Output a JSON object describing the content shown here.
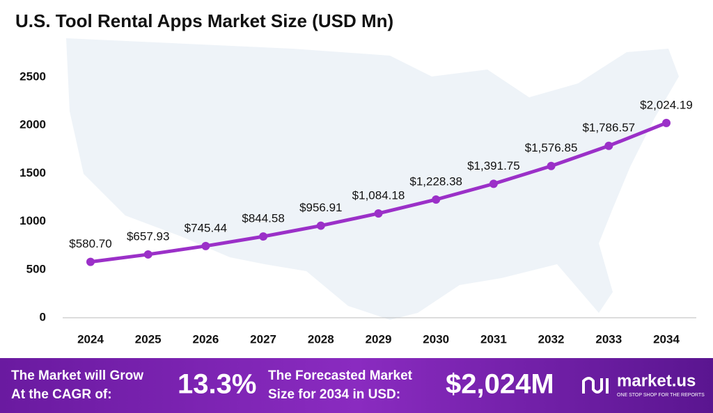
{
  "chart_data": {
    "type": "line",
    "title": "U.S. Tool Rental Apps Market Size (USD Mn)",
    "categories": [
      "2024",
      "2025",
      "2026",
      "2027",
      "2028",
      "2029",
      "2030",
      "2031",
      "2032",
      "2033",
      "2034"
    ],
    "values": [
      580.7,
      657.93,
      745.44,
      844.58,
      956.91,
      1084.18,
      1228.38,
      1391.75,
      1576.85,
      1786.57,
      2024.19
    ],
    "value_labels": [
      "$580.70",
      "$657.93",
      "$745.44",
      "$844.58",
      "$956.91",
      "$1,084.18",
      "$1,228.38",
      "$1,391.75",
      "$1,576.85",
      "$1,786.57",
      "$2,024.19"
    ],
    "color": "#9b30c8",
    "ylim": [
      0,
      2500
    ],
    "yticks": [
      0,
      500,
      1000,
      1500,
      2000,
      2500
    ],
    "grid": false
  },
  "footer": {
    "cagr_text": [
      "The Market will Grow",
      "At the CAGR of:"
    ],
    "cagr": "13.3%",
    "forecast_text": [
      "The Forecasted Market",
      "Size for 2034 in USD:"
    ],
    "forecast": "$2,024M",
    "brand": "market.us",
    "tagline": "ONE STOP SHOP FOR THE REPORTS"
  }
}
